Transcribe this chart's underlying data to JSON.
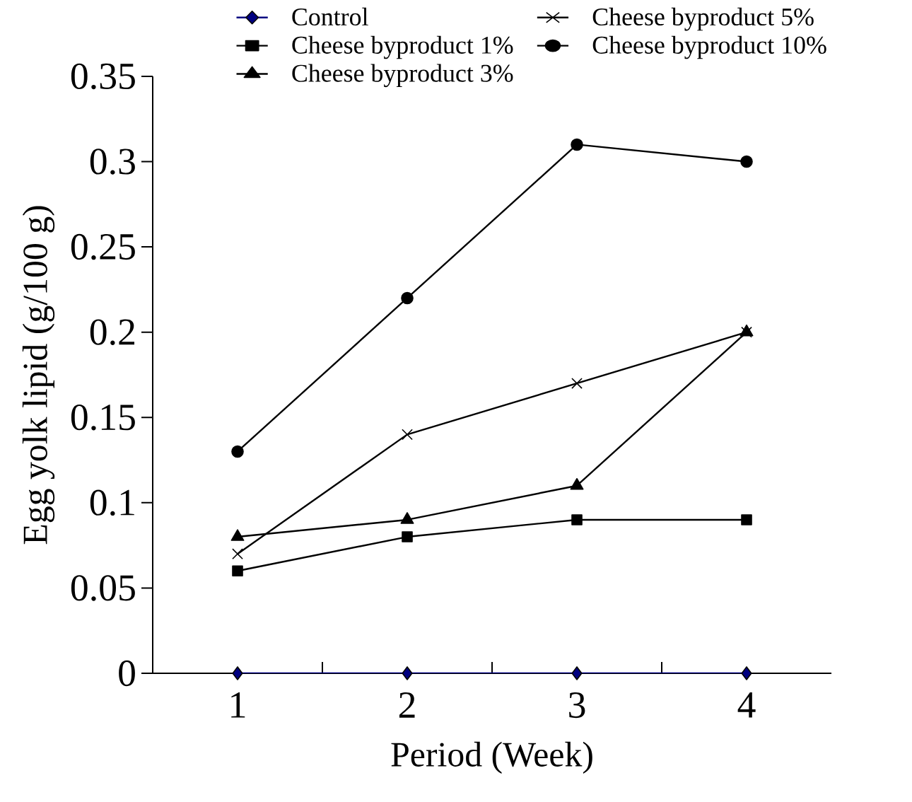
{
  "chart_data": {
    "type": "line",
    "xlabel": "Period (Week)",
    "ylabel": "Egg yolk lipid (g/100 g)",
    "categories": [
      "1",
      "2",
      "3",
      "4"
    ],
    "series": [
      {
        "name": "Control",
        "color": "#000080",
        "marker": "diamond",
        "values": [
          0,
          0,
          0,
          0
        ]
      },
      {
        "name": "Cheese byproduct 1%",
        "color": "#000000",
        "marker": "square",
        "values": [
          0.06,
          0.08,
          0.09,
          0.09
        ]
      },
      {
        "name": "Cheese byproduct 3%",
        "color": "#000000",
        "marker": "triangle",
        "values": [
          0.08,
          0.09,
          0.11,
          0.2
        ]
      },
      {
        "name": "Cheese byproduct 5%",
        "color": "#000000",
        "marker": "cross",
        "values": [
          0.07,
          0.14,
          0.17,
          0.2
        ]
      },
      {
        "name": "Cheese byproduct 10%",
        "color": "#000000",
        "marker": "circle",
        "values": [
          0.13,
          0.22,
          0.31,
          0.3
        ]
      }
    ],
    "ylim": [
      0,
      0.35
    ],
    "yticks": [
      0,
      0.05,
      0.1,
      0.15,
      0.2,
      0.25,
      0.3,
      0.35
    ],
    "grid": false,
    "legend": "top",
    "line_style": "solid"
  }
}
